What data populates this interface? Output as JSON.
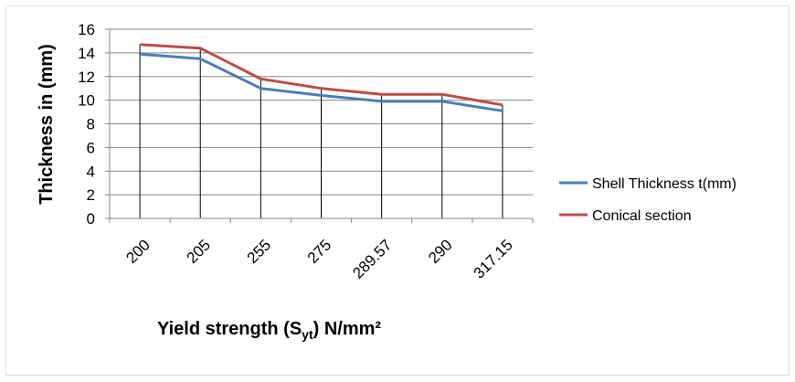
{
  "chart_data": {
    "type": "line",
    "categories": [
      "200",
      "205",
      "255",
      "275",
      "289.57",
      "290",
      "317.15"
    ],
    "series": [
      {
        "name": "Shell Thickness t(mm)",
        "values": [
          13.9,
          13.5,
          11.0,
          10.4,
          9.9,
          9.9,
          9.1
        ],
        "color": "#4a7ebb"
      },
      {
        "name": "Conical section",
        "values": [
          14.7,
          14.4,
          11.8,
          11.0,
          10.5,
          10.5,
          9.6
        ],
        "color": "#be4b48"
      }
    ],
    "ylabel": "Thickness in (mm)",
    "xlabel": {
      "prefix": "Yield strength (S",
      "subscript": "yt",
      "suffix": ") N/mm²"
    },
    "ylim": [
      0,
      16
    ],
    "yticks": [
      "0",
      "2",
      "4",
      "6",
      "8",
      "10",
      "12",
      "14",
      "16"
    ],
    "grid": true,
    "legend_position": "right"
  }
}
